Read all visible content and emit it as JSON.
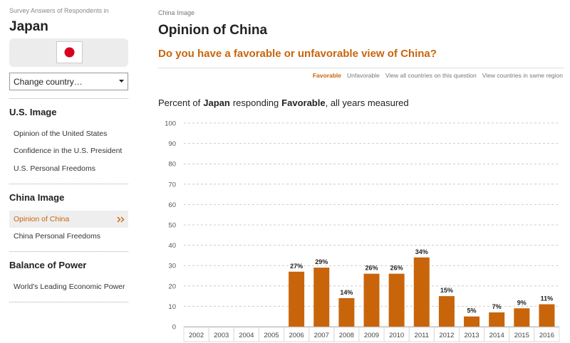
{
  "sidebar": {
    "caption": "Survey Answers of Respondents in",
    "country": "Japan",
    "dropdown": "Change country…",
    "sections": [
      {
        "title": "U.S. Image",
        "items": [
          "Opinion of the United States",
          "Confidence in the U.S. President",
          "U.S. Personal Freedoms"
        ]
      },
      {
        "title": "China Image",
        "items": [
          "Opinion of China",
          "China Personal Freedoms"
        ]
      },
      {
        "title": "Balance of Power",
        "items": [
          "World's Leading Economic Power"
        ]
      }
    ]
  },
  "header": {
    "breadcrumb": "China Image",
    "title": "Opinion of China",
    "question": "Do you have a favorable or unfavorable view of China?",
    "tabs": [
      "Favorable",
      "Unfavorable",
      "View all countries on this question",
      "View countries in same region"
    ]
  },
  "subtitle": [
    "Percent of",
    "Japan",
    "responding",
    "Favorable",
    ", all years measured"
  ],
  "chart_data": {
    "type": "bar",
    "categories": [
      "2002",
      "2003",
      "2004",
      "2005",
      "2006",
      "2007",
      "2008",
      "2009",
      "2010",
      "2011",
      "2012",
      "2013",
      "2014",
      "2015",
      "2016"
    ],
    "values": [
      null,
      null,
      null,
      null,
      27,
      29,
      14,
      26,
      26,
      34,
      15,
      5,
      7,
      9,
      11
    ],
    "value_labels": [
      null,
      null,
      null,
      null,
      "27%",
      "29%",
      "14%",
      "26%",
      "26%",
      "34%",
      "15%",
      "5%",
      "7%",
      "9%",
      "11%"
    ],
    "color": "#c8650b",
    "ylim": [
      0,
      100
    ],
    "yticks": [
      0,
      10,
      20,
      30,
      40,
      50,
      60,
      70,
      80,
      90,
      100
    ],
    "grid": true
  }
}
